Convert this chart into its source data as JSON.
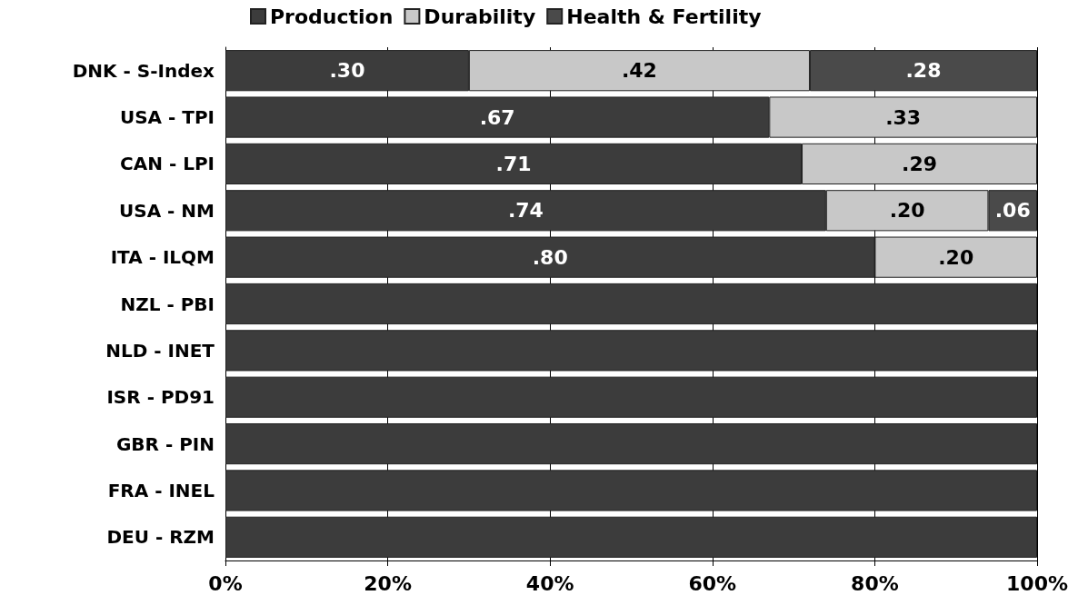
{
  "chart_data": {
    "type": "bar",
    "orientation": "horizontal",
    "stacked": true,
    "legend": "top",
    "grid": "x",
    "categories": [
      "DNK - S-Index",
      "USA - TPI",
      "CAN - LPI",
      "USA - NM",
      "ITA - ILQM",
      "NZL - PBI",
      "NLD - INET",
      "ISR - PD91",
      "GBR - PIN",
      "FRA - INEL",
      "DEU - RZM"
    ],
    "xlim": [
      0,
      1
    ],
    "xticks": [
      {
        "value": 0,
        "label": "0%"
      },
      {
        "value": 0.2,
        "label": "20%"
      },
      {
        "value": 0.4,
        "label": "40%"
      },
      {
        "value": 0.6,
        "label": "60%"
      },
      {
        "value": 0.8,
        "label": "80%"
      },
      {
        "value": 1,
        "label": "100%"
      }
    ],
    "series": [
      {
        "name": "Production",
        "color": "#3c3c3c",
        "values": [
          0.3,
          0.67,
          0.71,
          0.74,
          0.8,
          1,
          1,
          1,
          1,
          1,
          1
        ],
        "value_labels": [
          ".30",
          ".67",
          ".71",
          ".74",
          ".80",
          null,
          null,
          null,
          null,
          null,
          null
        ]
      },
      {
        "name": "Durability",
        "color": "#c8c8c8",
        "values": [
          0.42,
          0.33,
          0.29,
          0.2,
          0.2,
          null,
          null,
          null,
          null,
          null,
          null
        ],
        "value_labels": [
          ".42",
          ".33",
          ".29",
          ".20",
          ".20",
          null,
          null,
          null,
          null,
          null,
          null
        ]
      },
      {
        "name": "Health & Fertility",
        "color": "#4a4a4a",
        "values": [
          0.28,
          null,
          null,
          0.06,
          null,
          null,
          null,
          null,
          null,
          null,
          null
        ],
        "value_labels": [
          ".28",
          null,
          null,
          ".06",
          null,
          null,
          null,
          null,
          null,
          null,
          null
        ]
      }
    ]
  }
}
